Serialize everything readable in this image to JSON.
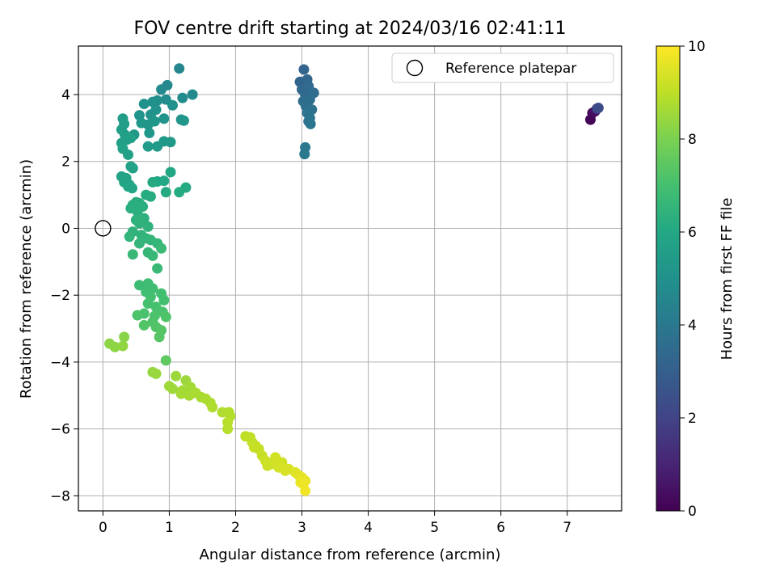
{
  "chart_data": {
    "type": "scatter",
    "title": "FOV centre drift starting at 2024/03/16 02:41:11",
    "xlabel": "Angular distance from reference (arcmin)",
    "ylabel": "Rotation from reference (arcmin)",
    "xlim": [
      -0.37,
      7.82
    ],
    "ylim": [
      -8.45,
      5.45
    ],
    "xticks": [
      0,
      1,
      2,
      3,
      4,
      5,
      6,
      7
    ],
    "yticks": [
      -8,
      -6,
      -4,
      -2,
      0,
      2,
      4
    ],
    "grid": true,
    "legend": {
      "position": "top-right",
      "entries": [
        "Reference platepar"
      ]
    },
    "reference_point": {
      "x": 0.0,
      "y": 0.0
    },
    "colorbar": {
      "label": "Hours from first FF file",
      "range": [
        0,
        10
      ],
      "ticks": [
        0,
        2,
        4,
        6,
        8,
        10
      ],
      "colormap": "viridis"
    },
    "points": [
      [
        7.35,
        3.25,
        0.1
      ],
      [
        7.38,
        3.45,
        0.2
      ],
      [
        7.42,
        3.5,
        0.4
      ],
      [
        7.45,
        3.58,
        1.8
      ],
      [
        7.47,
        3.6,
        2.3
      ],
      [
        3.03,
        4.75,
        3.2
      ],
      [
        2.97,
        4.38,
        3.25
      ],
      [
        3.08,
        4.45,
        3.3
      ],
      [
        3.0,
        4.15,
        3.35
      ],
      [
        3.05,
        4.0,
        3.4
      ],
      [
        3.1,
        4.25,
        3.45
      ],
      [
        3.18,
        4.05,
        3.5
      ],
      [
        3.02,
        3.8,
        3.55
      ],
      [
        3.12,
        3.85,
        3.6
      ],
      [
        3.06,
        3.65,
        3.65
      ],
      [
        3.15,
        3.55,
        3.7
      ],
      [
        3.08,
        3.45,
        3.75
      ],
      [
        3.12,
        3.3,
        3.8
      ],
      [
        3.1,
        3.2,
        3.85
      ],
      [
        3.13,
        3.12,
        3.9
      ],
      [
        3.05,
        2.42,
        4.0
      ],
      [
        3.04,
        2.22,
        4.05
      ],
      [
        1.15,
        4.78,
        4.6
      ],
      [
        0.97,
        4.28,
        4.65
      ],
      [
        0.88,
        4.15,
        4.7
      ],
      [
        1.35,
        4.0,
        4.75
      ],
      [
        1.2,
        3.9,
        4.8
      ],
      [
        0.95,
        3.85,
        4.85
      ],
      [
        0.82,
        3.82,
        4.9
      ],
      [
        0.75,
        3.78,
        4.95
      ],
      [
        0.62,
        3.72,
        5.0
      ],
      [
        1.05,
        3.68,
        5.0
      ],
      [
        0.8,
        3.55,
        5.05
      ],
      [
        0.72,
        3.4,
        5.1
      ],
      [
        0.55,
        3.38,
        5.1
      ],
      [
        0.92,
        3.28,
        5.15
      ],
      [
        1.18,
        3.25,
        5.15
      ],
      [
        1.22,
        3.22,
        5.2
      ],
      [
        0.78,
        3.2,
        5.2
      ],
      [
        0.58,
        3.15,
        5.25
      ],
      [
        0.68,
        3.1,
        5.25
      ],
      [
        0.7,
        2.85,
        5.3
      ],
      [
        0.47,
        2.8,
        5.3
      ],
      [
        0.92,
        2.6,
        5.35
      ],
      [
        1.02,
        2.58,
        5.35
      ],
      [
        0.68,
        2.45,
        5.4
      ],
      [
        0.82,
        2.45,
        5.4
      ],
      [
        0.3,
        3.28,
        5.5
      ],
      [
        0.32,
        3.12,
        5.55
      ],
      [
        0.28,
        2.95,
        5.55
      ],
      [
        0.33,
        2.8,
        5.6
      ],
      [
        0.28,
        2.55,
        5.6
      ],
      [
        0.36,
        2.65,
        5.65
      ],
      [
        0.42,
        2.7,
        5.65
      ],
      [
        0.3,
        2.38,
        5.7
      ],
      [
        0.38,
        2.2,
        5.7
      ],
      [
        0.42,
        1.85,
        5.75
      ],
      [
        0.45,
        1.8,
        5.75
      ],
      [
        0.28,
        1.55,
        5.8
      ],
      [
        0.35,
        1.5,
        5.8
      ],
      [
        0.32,
        1.38,
        5.85
      ],
      [
        0.4,
        1.3,
        5.85
      ],
      [
        0.38,
        1.25,
        5.9
      ],
      [
        0.44,
        1.2,
        5.9
      ],
      [
        1.02,
        1.68,
        5.95
      ],
      [
        0.92,
        1.42,
        6.0
      ],
      [
        0.82,
        1.4,
        6.0
      ],
      [
        0.75,
        1.38,
        6.05
      ],
      [
        1.25,
        1.22,
        6.05
      ],
      [
        1.15,
        1.08,
        6.1
      ],
      [
        0.95,
        1.08,
        6.1
      ],
      [
        0.65,
        1.0,
        6.15
      ],
      [
        0.72,
        0.95,
        6.15
      ],
      [
        0.5,
        0.78,
        6.2
      ],
      [
        0.55,
        0.75,
        6.2
      ],
      [
        0.45,
        0.7,
        6.25
      ],
      [
        0.6,
        0.65,
        6.25
      ],
      [
        0.42,
        0.6,
        6.3
      ],
      [
        0.52,
        0.5,
        6.3
      ],
      [
        0.5,
        0.25,
        6.35
      ],
      [
        0.62,
        0.3,
        6.35
      ],
      [
        0.55,
        0.15,
        6.4
      ],
      [
        0.68,
        0.05,
        6.4
      ],
      [
        0.45,
        -0.1,
        6.45
      ],
      [
        0.58,
        -0.2,
        6.45
      ],
      [
        0.4,
        -0.25,
        6.5
      ],
      [
        0.65,
        -0.3,
        6.5
      ],
      [
        0.72,
        -0.35,
        6.55
      ],
      [
        0.55,
        -0.45,
        6.55
      ],
      [
        0.82,
        -0.45,
        6.6
      ],
      [
        0.68,
        -0.72,
        6.6
      ],
      [
        0.75,
        -0.82,
        6.65
      ],
      [
        0.45,
        -0.78,
        6.65
      ],
      [
        0.82,
        -1.2,
        6.7
      ],
      [
        0.88,
        -0.6,
        6.75
      ],
      [
        0.55,
        -1.7,
        6.8
      ],
      [
        0.68,
        -1.65,
        6.85
      ],
      [
        0.75,
        -1.8,
        6.9
      ],
      [
        0.65,
        -1.9,
        6.9
      ],
      [
        0.88,
        -1.95,
        6.95
      ],
      [
        0.72,
        -2.05,
        7.0
      ],
      [
        0.92,
        -2.15,
        7.0
      ],
      [
        0.68,
        -2.25,
        7.05
      ],
      [
        0.8,
        -2.35,
        7.05
      ],
      [
        0.9,
        -2.5,
        7.1
      ],
      [
        0.62,
        -2.55,
        7.1
      ],
      [
        0.52,
        -2.6,
        7.15
      ],
      [
        0.78,
        -2.62,
        7.15
      ],
      [
        0.95,
        -2.65,
        7.2
      ],
      [
        0.75,
        -2.8,
        7.2
      ],
      [
        0.62,
        -2.9,
        7.25
      ],
      [
        0.8,
        -2.95,
        7.25
      ],
      [
        0.88,
        -3.05,
        7.3
      ],
      [
        0.85,
        -3.25,
        7.35
      ],
      [
        0.95,
        -3.95,
        7.5
      ],
      [
        0.32,
        -3.25,
        8.2
      ],
      [
        0.1,
        -3.45,
        8.25
      ],
      [
        0.18,
        -3.55,
        8.3
      ],
      [
        0.3,
        -3.52,
        8.35
      ],
      [
        0.75,
        -4.3,
        8.4
      ],
      [
        0.8,
        -4.35,
        8.45
      ],
      [
        1.1,
        -4.42,
        8.5
      ],
      [
        1.25,
        -4.55,
        8.5
      ],
      [
        1.0,
        -4.72,
        8.55
      ],
      [
        1.05,
        -4.8,
        8.55
      ],
      [
        1.2,
        -4.85,
        8.6
      ],
      [
        1.32,
        -4.75,
        8.6
      ],
      [
        1.18,
        -4.95,
        8.65
      ],
      [
        1.3,
        -5.0,
        8.65
      ],
      [
        1.4,
        -4.92,
        8.7
      ],
      [
        1.48,
        -5.05,
        8.7
      ],
      [
        1.55,
        -5.1,
        8.75
      ],
      [
        1.62,
        -5.22,
        8.75
      ],
      [
        1.65,
        -5.35,
        8.8
      ],
      [
        1.8,
        -5.5,
        8.8
      ],
      [
        1.9,
        -5.5,
        8.85
      ],
      [
        1.92,
        -5.62,
        8.85
      ],
      [
        1.88,
        -5.8,
        8.9
      ],
      [
        1.88,
        -6.0,
        8.9
      ],
      [
        2.15,
        -6.22,
        9.0
      ],
      [
        2.22,
        -6.25,
        9.05
      ],
      [
        2.25,
        -6.4,
        9.05
      ],
      [
        2.3,
        -6.5,
        9.1
      ],
      [
        2.35,
        -6.6,
        9.1
      ],
      [
        2.28,
        -6.55,
        9.15
      ],
      [
        2.4,
        -6.8,
        9.15
      ],
      [
        2.45,
        -6.95,
        9.2
      ],
      [
        2.55,
        -7.05,
        9.25
      ],
      [
        2.48,
        -7.1,
        9.25
      ],
      [
        2.6,
        -6.85,
        9.3
      ],
      [
        2.7,
        -7.0,
        9.3
      ],
      [
        2.65,
        -7.15,
        9.35
      ],
      [
        2.75,
        -7.25,
        9.4
      ],
      [
        2.8,
        -7.2,
        9.4
      ],
      [
        2.9,
        -7.3,
        9.5
      ],
      [
        2.95,
        -7.38,
        9.55
      ],
      [
        3.0,
        -7.45,
        9.6
      ],
      [
        3.05,
        -7.55,
        9.65
      ],
      [
        2.98,
        -7.6,
        9.7
      ],
      [
        3.02,
        -7.65,
        9.75
      ],
      [
        3.05,
        -7.85,
        9.8
      ]
    ]
  }
}
